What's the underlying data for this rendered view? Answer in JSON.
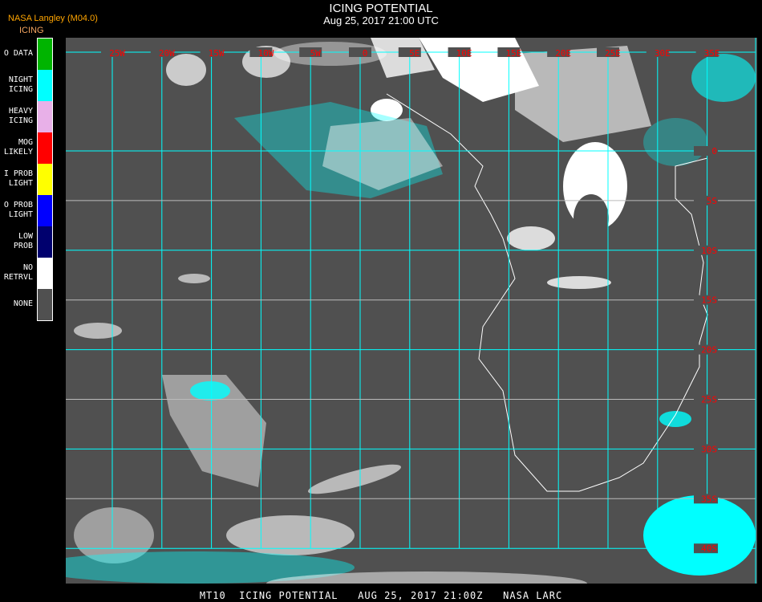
{
  "header": {
    "title": "ICING POTENTIAL",
    "subtitle": "Aug 25, 2017 21:00 UTC",
    "producer": "NASA Langley (M04.0)",
    "legend_title": "ICING"
  },
  "legend": [
    {
      "label": "O DATA",
      "color": "#00b400"
    },
    {
      "label": "NIGHT\nICING",
      "color": "#00ffff"
    },
    {
      "label": "HEAVY\nICING",
      "color": "#e8b0e8"
    },
    {
      "label": "MOG\nLIKELY",
      "color": "#ff0000"
    },
    {
      "label": "I PROB\nLIGHT",
      "color": "#ffff00"
    },
    {
      "label": "O PROB\nLIGHT",
      "color": "#0000ff"
    },
    {
      "label": "LOW\nPROB",
      "color": "#00006e"
    },
    {
      "label": "NO\nRETRVL",
      "color": "#ffffff"
    },
    {
      "label": "NONE",
      "color": "#505050"
    }
  ],
  "map": {
    "background_color": "#505050",
    "grid_color": "#00ffff",
    "label_color": "#ff0000",
    "longitude_labels": [
      "25W",
      "20W",
      "15W",
      "10W",
      "5W",
      "0",
      "5E",
      "10E",
      "15E",
      "20E",
      "25E",
      "30E",
      "35E"
    ],
    "latitude_labels": [
      "0",
      "5S",
      "10S",
      "15S",
      "20S",
      "25S",
      "30S",
      "35S",
      "40S"
    ]
  },
  "footer": {
    "text": "MT10  ICING POTENTIAL   AUG 25, 2017 21:00Z   NASA LARC"
  }
}
